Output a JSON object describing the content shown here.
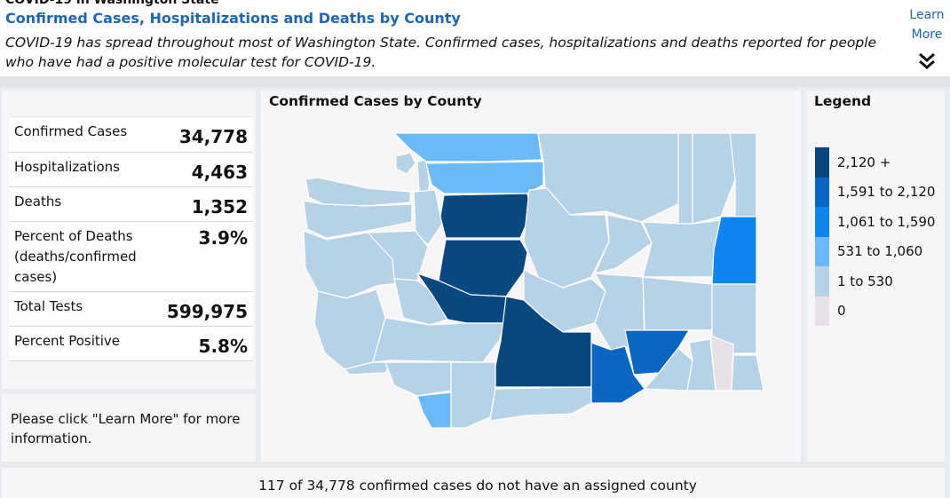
{
  "header": {
    "app_title": "COVID-19 in Washington State",
    "subtitle": "Confirmed Cases, Hospitalizations and Deaths by County",
    "description": "COVID-19 has spread throughout most of Washington State. Confirmed cases, hospitalizations and deaths reported for people who have had a positive molecular test for COVID-19.",
    "learn_more_line1": "Learn",
    "learn_more_line2": "More",
    "expand_icon": "double-chevron-down-icon"
  },
  "stats": [
    {
      "label": "Confirmed Cases",
      "value": "34,778"
    },
    {
      "label": "Hospitalizations",
      "value": "4,463"
    },
    {
      "label": "Deaths",
      "value": "1,352"
    },
    {
      "label": "Percent of Deaths (deaths/confirmed cases)",
      "value": "3.9%"
    },
    {
      "label": "Total Tests",
      "value": "599,975"
    },
    {
      "label": "Percent Positive",
      "value": "5.8%"
    }
  ],
  "note": "Please click \"Learn More\" for more information.",
  "map": {
    "title": "Confirmed Cases by County"
  },
  "legend": {
    "title": "Legend",
    "items": [
      {
        "label": "2,120 +",
        "color": "#08477f"
      },
      {
        "label": "1,591 to 2,120",
        "color": "#0b66c2"
      },
      {
        "label": "1,061 to 1,590",
        "color": "#0d84f0"
      },
      {
        "label": "531 to 1,060",
        "color": "#6bb9f6"
      },
      {
        "label": "1 to 530",
        "color": "#b6d2e7"
      },
      {
        "label": "0",
        "color": "#e7e2ea"
      }
    ]
  },
  "footer": {
    "unassigned_note": "117 of 34,778 confirmed cases do not have an assigned county"
  }
}
